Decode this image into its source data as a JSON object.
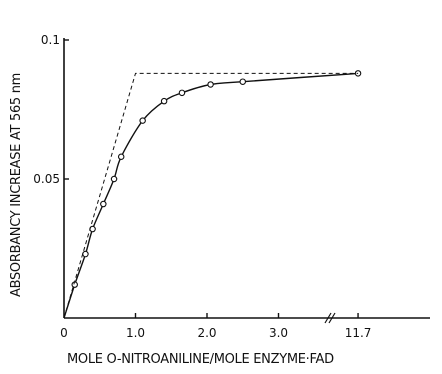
{
  "chart_data": {
    "type": "line",
    "title": "",
    "xlabel": "MOLE O-NITROANILINE/MOLE ENZYME·FAD",
    "ylabel": "ABSORBANCY INCREASE AT 565 nm",
    "xlim": [
      0,
      3.7
    ],
    "ylim": [
      0,
      0.1
    ],
    "x_ticks": [
      {
        "value": 0,
        "label": "0"
      },
      {
        "value": 1.0,
        "label": "1.0"
      },
      {
        "value": 2.0,
        "label": "2.0"
      },
      {
        "value": 3.0,
        "label": "3.0"
      },
      {
        "value": 11.7,
        "label": "11.7"
      }
    ],
    "y_ticks": [
      {
        "value": 0.05,
        "label": "0.05"
      },
      {
        "value": 0.1,
        "label": "0.1"
      }
    ],
    "axis_break": {
      "after": 3.6,
      "resume": 10.6
    },
    "grid": false,
    "series": [
      {
        "style": "solid-with-open-circles",
        "x": [
          0.15,
          0.3,
          0.4,
          0.55,
          0.7,
          0.8,
          1.1,
          1.4,
          1.65,
          2.05,
          2.5,
          11.7
        ],
        "y": [
          0.012,
          0.023,
          0.032,
          0.041,
          0.05,
          0.058,
          0.071,
          0.078,
          0.081,
          0.084,
          0.085,
          0.088
        ]
      },
      {
        "style": "dashed",
        "x": [
          0,
          1.0,
          11.7
        ],
        "y": [
          0,
          0.088,
          0.088
        ]
      }
    ]
  }
}
